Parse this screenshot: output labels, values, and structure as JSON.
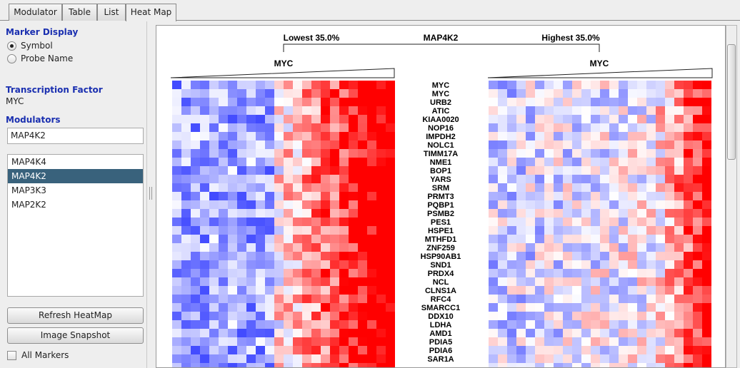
{
  "tabs": [
    {
      "label": "Modulator"
    },
    {
      "label": "Table"
    },
    {
      "label": "List"
    },
    {
      "label": "Heat Map"
    }
  ],
  "left_panel": {
    "marker_display": {
      "title": "Marker Display",
      "options": [
        {
          "label": "Symbol",
          "selected": true
        },
        {
          "label": "Probe Name",
          "selected": false
        }
      ]
    },
    "transcription_factor": {
      "title": "Transcription Factor",
      "value": "MYC"
    },
    "modulators": {
      "title": "Modulators",
      "input_value": "MAP4K2",
      "items": [
        "MAP4K4",
        "MAP4K2",
        "MAP3K3",
        "MAP2K2"
      ],
      "selected_item": "MAP4K2"
    },
    "buttons": {
      "refresh": "Refresh HeatMap",
      "snapshot": "Image Snapshot"
    },
    "all_markers": {
      "label": "All Markers",
      "checked": false
    }
  },
  "heatmap": {
    "modulator_label": "MAP4K2",
    "low_label": "Lowest 35.0%",
    "high_label": "Highest 35.0%",
    "left_tf_label": "MYC",
    "right_tf_label": "MYC",
    "genes": [
      "MYC",
      "MYC",
      "URB2",
      "ATIC",
      "KIAA0020",
      "NOP16",
      "IMPDH2",
      "NOLC1",
      "TIMM17A",
      "NME1",
      "BOP1",
      "YARS",
      "SRM",
      "PRMT3",
      "PQBP1",
      "PSMB2",
      "PES1",
      "HSPE1",
      "MTHFD1",
      "ZNF259",
      "HSP90AB1",
      "SND1",
      "PRDX4",
      "NCL",
      "CLNS1A",
      "RFC4",
      "SMARCC1",
      "DDX10",
      "LDHA",
      "AMD1",
      "PDIA5",
      "PDIA6",
      "SAR1A"
    ],
    "color_scale": {
      "low": "#2f3cff",
      "mid": "#ffffff",
      "high": "#ff0000"
    }
  }
}
